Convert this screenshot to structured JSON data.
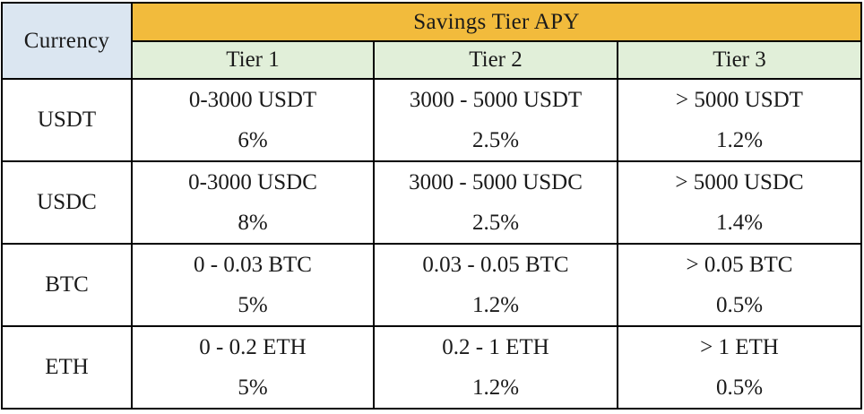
{
  "header": {
    "currency": "Currency",
    "group_title": "Savings Tier APY",
    "tiers": [
      "Tier 1",
      "Tier 2",
      "Tier 3"
    ]
  },
  "rows": [
    {
      "currency": "USDT",
      "cells": [
        {
          "range": "0-3000 USDT",
          "apy": "6%"
        },
        {
          "range": "3000 - 5000 USDT",
          "apy": "2.5%"
        },
        {
          "range": "> 5000 USDT",
          "apy": "1.2%"
        }
      ]
    },
    {
      "currency": "USDC",
      "cells": [
        {
          "range": "0-3000 USDC",
          "apy": "8%"
        },
        {
          "range": "3000 - 5000 USDC",
          "apy": "2.5%"
        },
        {
          "range": "> 5000 USDC",
          "apy": "1.4%"
        }
      ]
    },
    {
      "currency": "BTC",
      "cells": [
        {
          "range": "0 - 0.03 BTC",
          "apy": "5%"
        },
        {
          "range": "0.03 - 0.05 BTC",
          "apy": "1.2%"
        },
        {
          "range": "> 0.05 BTC",
          "apy": "0.5%"
        }
      ]
    },
    {
      "currency": "ETH",
      "cells": [
        {
          "range": "0 - 0.2 ETH",
          "apy": "5%"
        },
        {
          "range": "0.2 - 1 ETH",
          "apy": "1.2%"
        },
        {
          "range": "> 1 ETH",
          "apy": "0.5%"
        }
      ]
    }
  ],
  "colors": {
    "currency_header_bg": "#dbe6f1",
    "group_header_bg": "#f2bb3c",
    "tier_header_bg": "#e1efd9",
    "border": "#000000"
  }
}
